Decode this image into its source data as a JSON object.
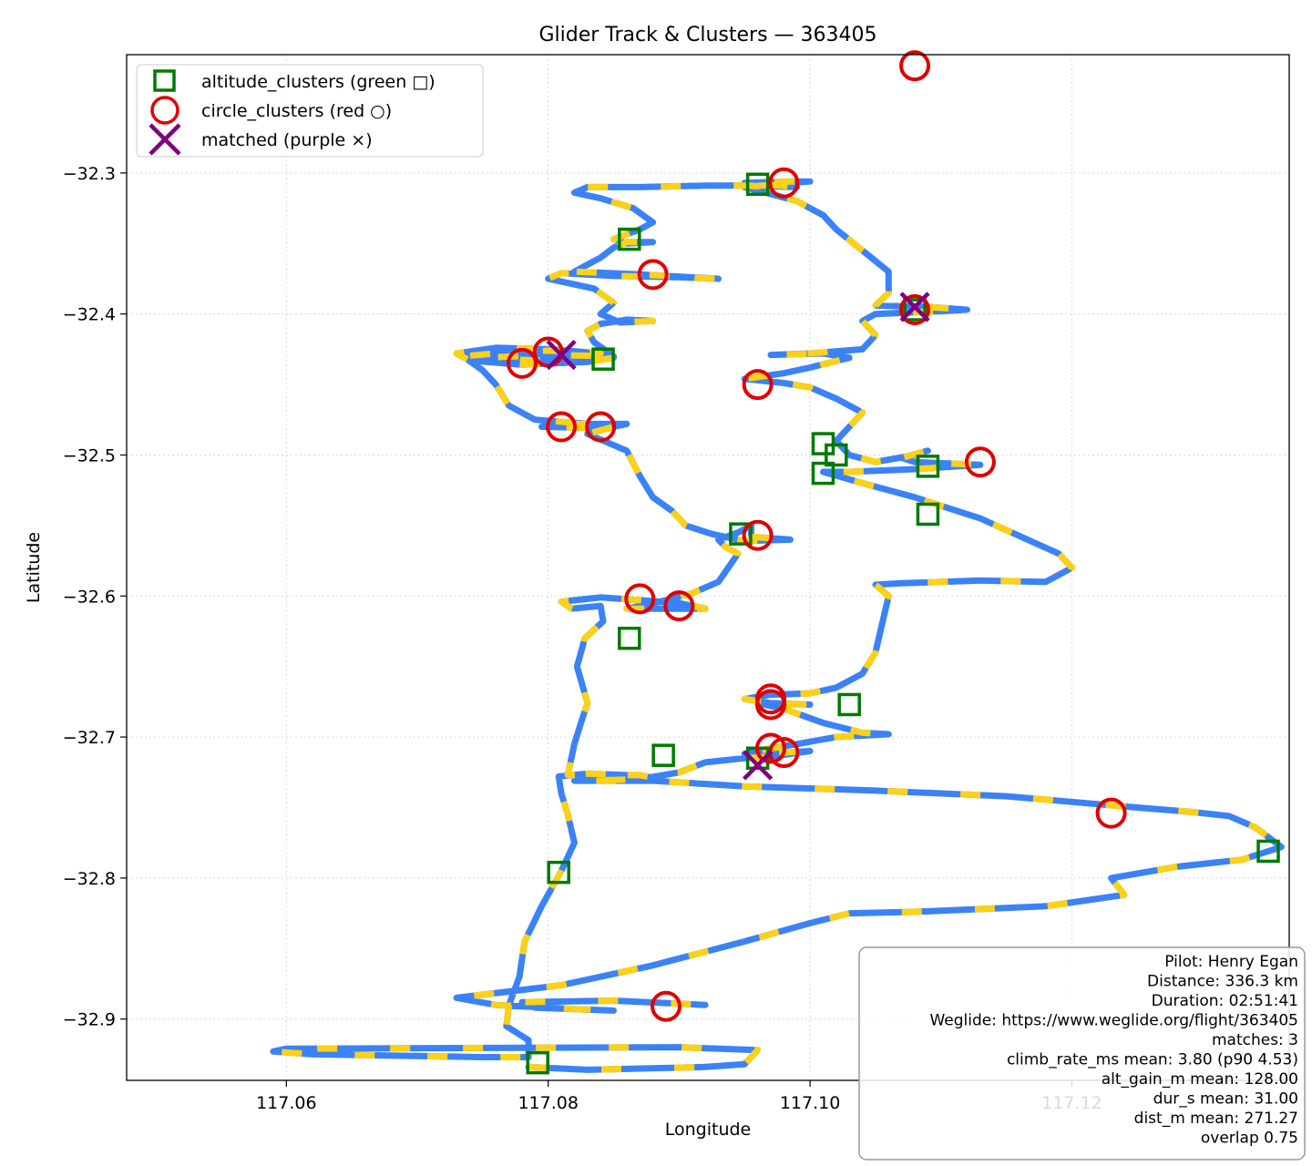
{
  "chart_data": {
    "type": "scatter",
    "title": "Glider Track & Clusters — 363405",
    "xlabel": "Longitude",
    "ylabel": "Latitude",
    "xlim": [
      117.0478,
      117.1366
    ],
    "ylim": [
      -32.9435,
      -32.2161
    ],
    "x_ticks": [
      117.06,
      117.08,
      117.1,
      117.12
    ],
    "x_tick_labels": [
      "117.06",
      "117.08",
      "117.10",
      "117.12"
    ],
    "y_ticks": [
      -32.3,
      -32.4,
      -32.5,
      -32.6,
      -32.7,
      -32.8,
      -32.9
    ],
    "y_tick_labels": [
      "−32.3",
      "−32.4",
      "−32.5",
      "−32.6",
      "−32.7",
      "−32.8",
      "−32.9"
    ],
    "grid": true,
    "legend_position": "top-left",
    "colors": {
      "track_a": "#3b82f6",
      "track_b": "#fcd116",
      "altitude": "#007a00",
      "circle": "#e00000",
      "matched": "#800080"
    },
    "legend": [
      {
        "label": "altitude_clusters (green □)",
        "marker": "square"
      },
      {
        "label": "circle_clusters (red ○)",
        "marker": "circle"
      },
      {
        "label": "matched (purple ×)",
        "marker": "x"
      }
    ],
    "track": [
      [
        117.0785,
        -32.934
      ],
      [
        117.083,
        -32.936
      ],
      [
        117.092,
        -32.934
      ],
      [
        117.095,
        -32.932
      ],
      [
        117.096,
        -32.922
      ],
      [
        117.09,
        -32.92
      ],
      [
        117.06,
        -32.921
      ],
      [
        117.059,
        -32.923
      ],
      [
        117.062,
        -32.925
      ],
      [
        117.075,
        -32.927
      ],
      [
        117.0785,
        -32.927
      ],
      [
        117.0785,
        -32.915
      ],
      [
        117.0768,
        -32.905
      ],
      [
        117.077,
        -32.89
      ],
      [
        117.0778,
        -32.87
      ],
      [
        117.0782,
        -32.845
      ],
      [
        117.0795,
        -32.82
      ],
      [
        117.081,
        -32.795
      ],
      [
        117.082,
        -32.775
      ],
      [
        117.0815,
        -32.755
      ],
      [
        117.081,
        -32.74
      ],
      [
        117.0808,
        -32.728
      ],
      [
        117.083,
        -32.726
      ],
      [
        117.086,
        -32.727
      ],
      [
        117.088,
        -32.729
      ],
      [
        117.087,
        -32.727
      ],
      [
        117.0815,
        -32.727
      ],
      [
        117.082,
        -32.705
      ],
      [
        117.0825,
        -32.69
      ],
      [
        117.083,
        -32.676
      ],
      [
        117.0822,
        -32.65
      ],
      [
        117.0828,
        -32.63
      ],
      [
        117.0842,
        -32.618
      ],
      [
        117.084,
        -32.607
      ],
      [
        117.0818,
        -32.609
      ],
      [
        117.081,
        -32.604
      ],
      [
        117.084,
        -32.601
      ],
      [
        117.087,
        -32.603
      ],
      [
        117.09,
        -32.605
      ],
      [
        117.092,
        -32.609
      ],
      [
        117.089,
        -32.609
      ],
      [
        117.086,
        -32.609
      ],
      [
        117.089,
        -32.603
      ],
      [
        117.091,
        -32.598
      ],
      [
        117.093,
        -32.59
      ],
      [
        117.0945,
        -32.57
      ],
      [
        117.0935,
        -32.565
      ],
      [
        117.093,
        -32.56
      ],
      [
        117.0945,
        -32.555
      ],
      [
        117.0955,
        -32.55
      ],
      [
        117.0955,
        -32.558
      ],
      [
        117.0985,
        -32.56
      ],
      [
        117.095,
        -32.561
      ],
      [
        117.0925,
        -32.556
      ],
      [
        117.0905,
        -32.55
      ],
      [
        117.0895,
        -32.54
      ],
      [
        117.088,
        -32.53
      ],
      [
        117.087,
        -32.515
      ],
      [
        117.086,
        -32.497
      ],
      [
        117.083,
        -32.485
      ],
      [
        117.085,
        -32.48
      ],
      [
        117.086,
        -32.478
      ],
      [
        117.08,
        -32.478
      ],
      [
        117.0795,
        -32.48
      ],
      [
        117.084,
        -32.481
      ],
      [
        117.0845,
        -32.479
      ],
      [
        117.079,
        -32.475
      ],
      [
        117.077,
        -32.465
      ],
      [
        117.076,
        -32.45
      ],
      [
        117.075,
        -32.44
      ],
      [
        117.0735,
        -32.43
      ],
      [
        117.076,
        -32.428
      ],
      [
        117.08,
        -32.426
      ],
      [
        117.084,
        -32.428
      ],
      [
        117.085,
        -32.431
      ],
      [
        117.083,
        -32.434
      ],
      [
        117.078,
        -32.436
      ],
      [
        117.074,
        -32.433
      ],
      [
        117.073,
        -32.428
      ],
      [
        117.076,
        -32.424
      ],
      [
        117.08,
        -32.425
      ],
      [
        117.084,
        -32.428
      ],
      [
        117.083,
        -32.432
      ],
      [
        117.079,
        -32.433
      ],
      [
        117.075,
        -32.431
      ],
      [
        117.08,
        -32.429
      ],
      [
        117.085,
        -32.43
      ],
      [
        117.0835,
        -32.42
      ],
      [
        117.083,
        -32.412
      ],
      [
        117.084,
        -32.407
      ],
      [
        117.086,
        -32.404
      ],
      [
        117.088,
        -32.405
      ],
      [
        117.0855,
        -32.406
      ],
      [
        117.084,
        -32.4
      ],
      [
        117.085,
        -32.392
      ],
      [
        117.0835,
        -32.382
      ],
      [
        117.08,
        -32.375
      ],
      [
        117.081,
        -32.371
      ],
      [
        117.085,
        -32.373
      ],
      [
        117.09,
        -32.374
      ],
      [
        117.093,
        -32.375
      ],
      [
        117.087,
        -32.372
      ],
      [
        117.082,
        -32.37
      ],
      [
        117.084,
        -32.36
      ],
      [
        117.085,
        -32.353
      ],
      [
        117.086,
        -32.349
      ],
      [
        117.088,
        -32.349
      ],
      [
        117.086,
        -32.35
      ],
      [
        117.085,
        -32.347
      ],
      [
        117.087,
        -32.34
      ],
      [
        117.088,
        -32.335
      ],
      [
        117.0865,
        -32.325
      ],
      [
        117.084,
        -32.318
      ],
      [
        117.082,
        -32.314
      ],
      [
        117.083,
        -32.31
      ],
      [
        117.087,
        -32.31
      ],
      [
        117.092,
        -32.309
      ],
      [
        117.095,
        -32.309
      ],
      [
        117.099,
        -32.31
      ],
      [
        117.095,
        -32.307
      ],
      [
        117.0985,
        -32.306
      ],
      [
        117.1,
        -32.306
      ],
      [
        117.095,
        -32.31
      ],
      [
        117.099,
        -32.32
      ],
      [
        117.101,
        -32.33
      ],
      [
        117.102,
        -32.34
      ],
      [
        117.104,
        -32.355
      ],
      [
        117.106,
        -32.37
      ],
      [
        117.106,
        -32.385
      ],
      [
        117.105,
        -32.394
      ],
      [
        117.109,
        -32.395
      ],
      [
        117.112,
        -32.397
      ],
      [
        117.11,
        -32.398
      ],
      [
        117.105,
        -32.4
      ],
      [
        117.104,
        -32.405
      ],
      [
        117.105,
        -32.415
      ],
      [
        117.104,
        -32.425
      ],
      [
        117.1,
        -32.428
      ],
      [
        117.097,
        -32.429
      ],
      [
        117.101,
        -32.428
      ],
      [
        117.103,
        -32.431
      ],
      [
        117.1,
        -32.438
      ],
      [
        117.098,
        -32.442
      ],
      [
        117.095,
        -32.446
      ],
      [
        117.098,
        -32.449
      ],
      [
        117.1,
        -32.452
      ],
      [
        117.102,
        -32.46
      ],
      [
        117.104,
        -32.47
      ],
      [
        117.103,
        -32.48
      ],
      [
        117.102,
        -32.49
      ],
      [
        117.103,
        -32.5
      ],
      [
        117.105,
        -32.505
      ],
      [
        117.108,
        -32.5
      ],
      [
        117.109,
        -32.497
      ],
      [
        117.107,
        -32.502
      ],
      [
        117.108,
        -32.505
      ],
      [
        117.113,
        -32.507
      ],
      [
        117.108,
        -32.51
      ],
      [
        117.103,
        -32.512
      ],
      [
        117.101,
        -32.512
      ],
      [
        117.104,
        -32.52
      ],
      [
        117.108,
        -32.53
      ],
      [
        117.113,
        -32.545
      ],
      [
        117.119,
        -32.57
      ],
      [
        117.12,
        -32.58
      ],
      [
        117.118,
        -32.59
      ],
      [
        117.113,
        -32.589
      ],
      [
        117.107,
        -32.591
      ],
      [
        117.105,
        -32.592
      ],
      [
        117.106,
        -32.6
      ],
      [
        117.1055,
        -32.62
      ],
      [
        117.105,
        -32.64
      ],
      [
        117.104,
        -32.655
      ],
      [
        117.102,
        -32.665
      ],
      [
        117.1,
        -32.669
      ],
      [
        117.097,
        -32.67
      ],
      [
        117.095,
        -32.673
      ],
      [
        117.097,
        -32.676
      ],
      [
        117.1,
        -32.677
      ],
      [
        117.096,
        -32.676
      ],
      [
        117.098,
        -32.68
      ],
      [
        117.101,
        -32.69
      ],
      [
        117.104,
        -32.697
      ],
      [
        117.106,
        -32.698
      ],
      [
        117.102,
        -32.7
      ],
      [
        117.099,
        -32.705
      ],
      [
        117.097,
        -32.708
      ],
      [
        117.095,
        -32.712
      ],
      [
        117.098,
        -32.711
      ],
      [
        117.1,
        -32.71
      ],
      [
        117.097,
        -32.714
      ],
      [
        117.095,
        -32.715
      ],
      [
        117.092,
        -32.718
      ],
      [
        117.09,
        -32.725
      ],
      [
        117.087,
        -32.73
      ],
      [
        117.082,
        -32.731
      ],
      [
        117.088,
        -32.731
      ],
      [
        117.095,
        -32.735
      ],
      [
        117.105,
        -32.738
      ],
      [
        117.115,
        -32.742
      ],
      [
        117.12,
        -32.746
      ],
      [
        117.125,
        -32.75
      ],
      [
        117.129,
        -32.753
      ],
      [
        117.132,
        -32.756
      ],
      [
        117.134,
        -32.764
      ],
      [
        117.136,
        -32.778
      ],
      [
        117.133,
        -32.787
      ],
      [
        117.128,
        -32.792
      ],
      [
        117.123,
        -32.8
      ],
      [
        117.124,
        -32.812
      ],
      [
        117.118,
        -32.82
      ],
      [
        117.108,
        -32.824
      ],
      [
        117.103,
        -32.825
      ],
      [
        117.1,
        -32.832
      ],
      [
        117.095,
        -32.845
      ],
      [
        117.088,
        -32.862
      ],
      [
        117.081,
        -32.876
      ],
      [
        117.073,
        -32.885
      ],
      [
        117.076,
        -32.89
      ],
      [
        117.082,
        -32.893
      ],
      [
        117.085,
        -32.894
      ],
      [
        117.079,
        -32.892
      ],
      [
        117.078,
        -32.888
      ],
      [
        117.085,
        -32.887
      ],
      [
        117.092,
        -32.89
      ]
    ],
    "altitude_clusters": [
      [
        117.0792,
        -32.931
      ],
      [
        117.0808,
        -32.796
      ],
      [
        117.0862,
        -32.63
      ],
      [
        117.0947,
        -32.556
      ],
      [
        117.0862,
        -32.347
      ],
      [
        117.0842,
        -32.432
      ],
      [
        117.0888,
        -32.713
      ],
      [
        117.096,
        -32.308
      ],
      [
        117.101,
        -32.492
      ],
      [
        117.102,
        -32.5
      ],
      [
        117.101,
        -32.513
      ],
      [
        117.109,
        -32.508
      ],
      [
        117.103,
        -32.677
      ],
      [
        117.109,
        -32.542
      ],
      [
        117.135,
        -32.781
      ],
      [
        117.096,
        -32.715
      ],
      [
        117.108,
        -32.397
      ]
    ],
    "circle_clusters": [
      [
        117.108,
        -32.224
      ],
      [
        117.098,
        -32.307
      ],
      [
        117.088,
        -32.372
      ],
      [
        117.08,
        -32.427
      ],
      [
        117.078,
        -32.435
      ],
      [
        117.081,
        -32.48
      ],
      [
        117.084,
        -32.48
      ],
      [
        117.096,
        -32.45
      ],
      [
        117.113,
        -32.505
      ],
      [
        117.096,
        -32.557
      ],
      [
        117.087,
        -32.602
      ],
      [
        117.09,
        -32.607
      ],
      [
        117.097,
        -32.673
      ],
      [
        117.097,
        -32.677
      ],
      [
        117.097,
        -32.708
      ],
      [
        117.098,
        -32.711
      ],
      [
        117.123,
        -32.754
      ],
      [
        117.089,
        -32.891
      ],
      [
        117.108,
        -32.397
      ]
    ],
    "matched": [
      [
        117.108,
        -32.395
      ],
      [
        117.081,
        -32.429
      ],
      [
        117.096,
        -32.72
      ]
    ],
    "info_box": [
      "Pilot: Henry Egan",
      "Distance: 336.3 km",
      "Duration: 02:51:41",
      "Weglide: https://www.weglide.org/flight/363405",
      "matches: 3",
      "climb_rate_ms mean: 3.80 (p90 4.53)",
      "alt_gain_m mean: 128.00",
      "dur_s mean: 31.00",
      "dist_m mean: 271.27",
      "overlap 0.75"
    ]
  }
}
